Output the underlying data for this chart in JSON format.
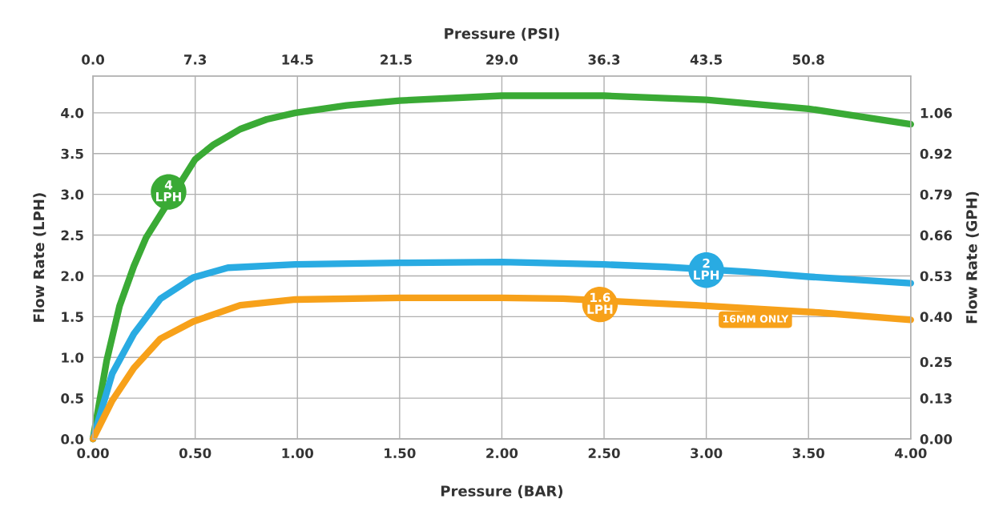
{
  "chart_data": {
    "type": "line",
    "xlabel": "Pressure (BAR)",
    "x2label": "Pressure (PSI)",
    "ylabel": "Flow Rate (LPH)",
    "y2label": "Flow Rate (GPH)",
    "xlim": [
      0,
      4.0
    ],
    "ylim": [
      0,
      4.45
    ],
    "x2lim": [
      0,
      58.0
    ],
    "y2lim": [
      0,
      1.1756
    ],
    "xticks": [
      {
        "value": 0,
        "label": "0.00"
      },
      {
        "value": 0.5,
        "label": "0.50"
      },
      {
        "value": 1.0,
        "label": "1.00"
      },
      {
        "value": 1.5,
        "label": "1.50"
      },
      {
        "value": 2.0,
        "label": "2.00"
      },
      {
        "value": 2.5,
        "label": "2.50"
      },
      {
        "value": 3.0,
        "label": "3.00"
      },
      {
        "value": 3.5,
        "label": "3.50"
      },
      {
        "value": 4.0,
        "label": "4.00"
      }
    ],
    "yticks": [
      {
        "value": 0,
        "label": "0.0"
      },
      0.5,
      {
        "value": 1.0,
        "label": "1.0"
      },
      1.5,
      {
        "value": 2.0,
        "label": "2.0"
      },
      2.5,
      {
        "value": 3.0,
        "label": "3.0"
      },
      3.5,
      {
        "value": 4.0,
        "label": "4.0"
      }
    ],
    "x2ticks": [
      {
        "value": 0,
        "label": "0.0"
      },
      {
        "value": 7.25,
        "label": "7.3"
      },
      14.5,
      {
        "value": 21.5,
        "label": "21.5"
      },
      {
        "value": 29,
        "label": "29.0"
      },
      {
        "value": 36.25,
        "label": "36.3"
      },
      43.5,
      {
        "value": 50.75,
        "label": "50.8"
      }
    ],
    "y2ticks": [
      {
        "value": 0,
        "label": "0.00"
      },
      {
        "value": 0.1321,
        "label": "0.13"
      },
      {
        "value": 0.25,
        "label": "0.25"
      },
      {
        "value": 0.3963,
        "label": "0.40"
      },
      {
        "value": 0.5283,
        "label": "0.53"
      },
      {
        "value": 0.6604,
        "label": "0.66"
      },
      {
        "value": 0.7925,
        "label": "0.79"
      },
      {
        "value": 0.9246,
        "label": "0.92"
      },
      {
        "value": 1.0567,
        "label": "1.06"
      }
    ],
    "grid": true,
    "marker": "none",
    "line_style": "solid",
    "series": [
      {
        "color": "#3aaa35",
        "x": [
          0,
          0.067,
          0.13,
          0.2,
          0.26,
          0.5,
          0.59,
          0.72,
          0.85,
          0.99,
          1.24,
          1.5,
          2.0,
          2.5,
          3.0,
          3.5,
          4.0
        ],
        "values": [
          0,
          0.96,
          1.63,
          2.12,
          2.47,
          3.43,
          3.61,
          3.8,
          3.92,
          4.0,
          4.09,
          4.15,
          4.21,
          4.21,
          4.16,
          4.05,
          3.86
        ]
      },
      {
        "color": "#29abe2",
        "x": [
          0,
          0.094,
          0.2,
          0.33,
          0.49,
          0.66,
          0.99,
          1.5,
          2.0,
          2.5,
          2.8,
          3.2,
          3.5,
          4.0
        ],
        "values": [
          0,
          0.8,
          1.29,
          1.72,
          1.98,
          2.1,
          2.14,
          2.16,
          2.17,
          2.14,
          2.11,
          2.05,
          1.99,
          1.91
        ]
      },
      {
        "color": "#f7a11a",
        "x": [
          0,
          0.094,
          0.2,
          0.33,
          0.49,
          0.72,
          0.99,
          1.5,
          2.0,
          2.3,
          2.7,
          2.95,
          3.55,
          4.0
        ],
        "values": [
          0,
          0.47,
          0.87,
          1.23,
          1.44,
          1.64,
          1.71,
          1.73,
          1.73,
          1.72,
          1.67,
          1.64,
          1.55,
          1.46
        ]
      }
    ],
    "annotations": [
      {
        "text": "4\nLPH",
        "x": 0.37,
        "y": 3.03
      },
      {
        "text": "2\nLPH",
        "x": 3.0,
        "y": 2.07
      },
      {
        "text": "1.6\nLPH",
        "x": 2.48,
        "y": 1.65
      },
      {
        "text": "16MM ONLY",
        "x": 3.24,
        "y": 1.6
      }
    ]
  }
}
